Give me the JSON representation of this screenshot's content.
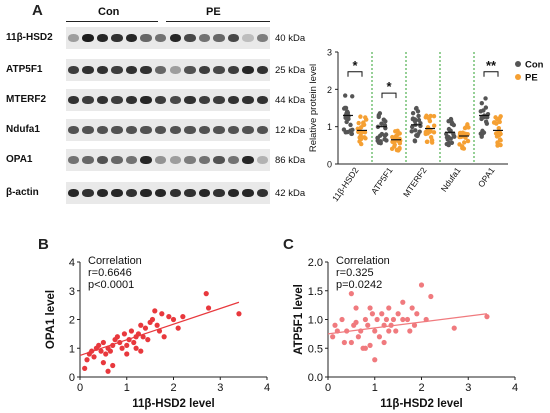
{
  "panel_a": {
    "letter": "A",
    "group_labels": [
      "Con",
      "PE"
    ],
    "blots": [
      {
        "label": "11β-HSD2",
        "kda": "40 kDa",
        "intensities": [
          0.35,
          0.95,
          0.9,
          0.85,
          0.9,
          0.6,
          0.55,
          0.9,
          0.75,
          0.55,
          0.6,
          0.75,
          0.2,
          0.5
        ]
      },
      {
        "label": "ATP5F1",
        "kda": "25 kDa",
        "intensities": [
          0.8,
          0.85,
          0.85,
          0.8,
          0.85,
          0.85,
          0.6,
          0.35,
          0.7,
          0.8,
          0.75,
          0.8,
          0.9,
          0.85
        ]
      },
      {
        "label": "MTERF2",
        "kda": "44 kDa",
        "intensities": [
          0.85,
          0.8,
          0.85,
          0.8,
          0.85,
          0.9,
          0.8,
          0.75,
          0.85,
          0.8,
          0.8,
          0.85,
          0.85,
          0.85
        ]
      },
      {
        "label": "Ndufa1",
        "kda": "12 kDa",
        "intensities": [
          0.7,
          0.7,
          0.7,
          0.7,
          0.7,
          0.7,
          0.7,
          0.7,
          0.7,
          0.7,
          0.7,
          0.7,
          0.7,
          0.7
        ]
      },
      {
        "label": "OPA1",
        "kda": "86 kDa",
        "intensities": [
          0.55,
          0.6,
          0.7,
          0.6,
          0.55,
          0.9,
          0.4,
          0.35,
          0.5,
          0.55,
          0.7,
          0.55,
          0.9,
          0.25
        ]
      },
      {
        "label": "β-actin",
        "kda": "42 kDa",
        "intensities": [
          0.9,
          0.85,
          0.9,
          0.9,
          0.85,
          0.9,
          0.9,
          0.85,
          0.85,
          0.9,
          0.85,
          0.9,
          0.9,
          0.85
        ]
      }
    ]
  },
  "colors": {
    "con": "#555555",
    "pe": "#f5a033",
    "scatter": "#e8383d",
    "scatter_light": "#f07a7e",
    "divider": "#2ca02c"
  },
  "chart_data": [
    {
      "type": "scatter",
      "panel": "A",
      "ylabel": "Relative protein level",
      "ylim": [
        0,
        3
      ],
      "yticks": [
        0,
        1,
        2,
        3
      ],
      "categories": [
        "11β-HSD2",
        "ATP5F1",
        "MTERF2",
        "Ndufa1",
        "OPA1"
      ],
      "legend": [
        "Con",
        "PE"
      ],
      "legend_position": "right",
      "significance": [
        "*",
        "*",
        "",
        "",
        "**"
      ],
      "series": [
        {
          "name": "Con",
          "mean": [
            1.3,
            1.0,
            1.05,
            0.85,
            1.3
          ]
        },
        {
          "name": "PE",
          "mean": [
            0.9,
            0.65,
            0.95,
            0.75,
            0.9
          ]
        }
      ]
    },
    {
      "type": "scatter",
      "panel": "B",
      "annotation": [
        "Correlation",
        "r=0.6646",
        "p<0.0001"
      ],
      "xlabel": "11β-HSD2 level",
      "ylabel": "OPA1 level",
      "xlim": [
        0,
        4
      ],
      "ylim": [
        0,
        4
      ],
      "xticks": [
        0,
        1,
        2,
        3,
        4
      ],
      "yticks": [
        0,
        1,
        2,
        3,
        4
      ],
      "fit": {
        "x": [
          0,
          3.4
        ],
        "y": [
          0.75,
          2.6
        ]
      },
      "x": [
        0.1,
        0.15,
        0.2,
        0.25,
        0.3,
        0.35,
        0.4,
        0.45,
        0.5,
        0.55,
        0.6,
        0.65,
        0.7,
        0.75,
        0.8,
        0.85,
        0.9,
        0.95,
        1.0,
        1.05,
        1.1,
        1.15,
        1.2,
        1.25,
        1.3,
        1.35,
        1.4,
        1.45,
        1.5,
        1.55,
        1.6,
        1.65,
        1.7,
        1.75,
        1.8,
        1.9,
        2.0,
        2.1,
        2.2,
        2.7,
        2.75,
        3.4,
        0.5,
        0.7,
        1.0,
        1.3,
        0.6,
        1.2
      ],
      "y": [
        0.3,
        0.6,
        0.8,
        0.9,
        0.7,
        1.0,
        1.1,
        0.9,
        1.2,
        0.8,
        1.0,
        0.9,
        1.1,
        1.3,
        1.4,
        1.2,
        1.0,
        1.5,
        1.1,
        1.3,
        1.6,
        1.2,
        1.4,
        1.5,
        1.8,
        1.4,
        1.7,
        1.3,
        1.9,
        2.0,
        2.3,
        1.8,
        1.6,
        2.2,
        1.4,
        2.1,
        2.0,
        1.7,
        2.1,
        2.9,
        2.4,
        2.2,
        0.5,
        0.4,
        0.8,
        0.9,
        0.2,
        1.0
      ]
    },
    {
      "type": "scatter",
      "panel": "C",
      "annotation": [
        "Correlation",
        "r=0.325",
        "p=0.0242"
      ],
      "xlabel": "11β-HSD2 level",
      "ylabel": "ATP5F1 level",
      "xlim": [
        0,
        4
      ],
      "ylim": [
        0,
        2.0
      ],
      "xticks": [
        0,
        1,
        2,
        3,
        4
      ],
      "yticks": [
        0.0,
        0.5,
        1.0,
        1.5,
        2.0
      ],
      "fit": {
        "x": [
          0,
          3.4
        ],
        "y": [
          0.75,
          1.1
        ]
      },
      "x": [
        0.1,
        0.15,
        0.2,
        0.3,
        0.35,
        0.4,
        0.5,
        0.55,
        0.6,
        0.65,
        0.7,
        0.75,
        0.8,
        0.85,
        0.9,
        0.95,
        1.0,
        1.05,
        1.1,
        1.15,
        1.2,
        1.25,
        1.3,
        1.35,
        1.4,
        1.45,
        1.5,
        1.6,
        1.7,
        1.75,
        1.8,
        1.85,
        1.9,
        2.0,
        2.1,
        2.2,
        2.7,
        3.4,
        0.5,
        0.8,
        1.0,
        1.3,
        0.6,
        1.2,
        0.9,
        1.6
      ],
      "y": [
        0.7,
        0.9,
        0.8,
        1.0,
        0.6,
        0.8,
        1.45,
        0.9,
        1.2,
        0.7,
        0.8,
        0.5,
        1.0,
        0.9,
        1.2,
        1.1,
        0.8,
        1.0,
        0.7,
        1.1,
        0.9,
        1.0,
        1.2,
        0.9,
        1.0,
        0.8,
        1.1,
        1.3,
        1.0,
        0.8,
        1.2,
        0.9,
        1.1,
        1.6,
        1.0,
        1.4,
        0.85,
        1.05,
        0.6,
        0.5,
        0.3,
        0.8,
        0.95,
        0.6,
        0.55,
        1.0
      ]
    }
  ]
}
